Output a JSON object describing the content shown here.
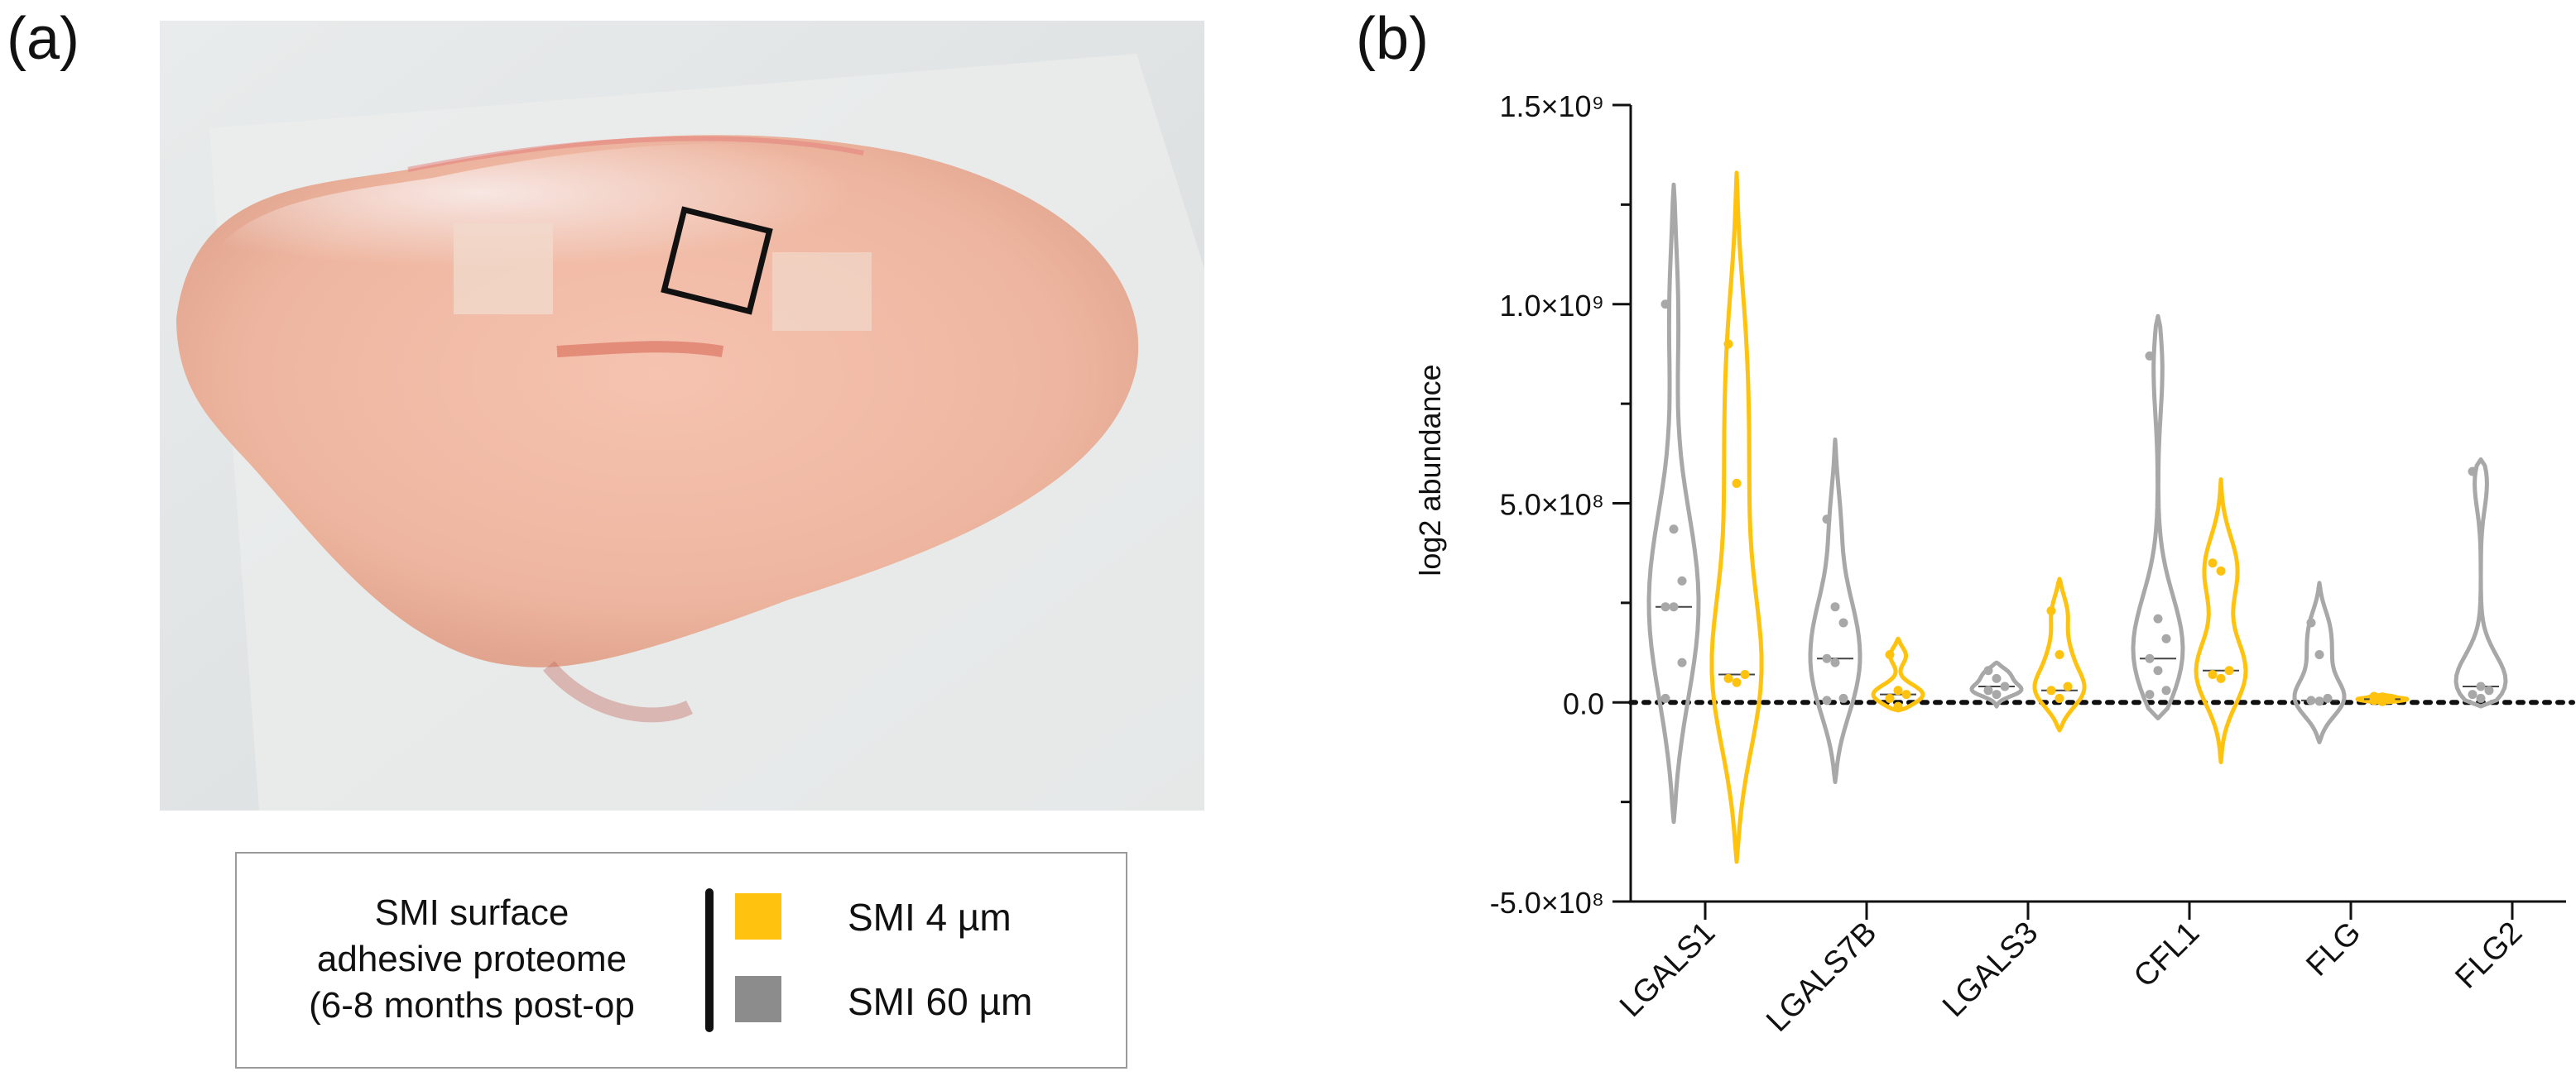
{
  "panels": {
    "a_label": "(a)",
    "b_label": "(b)"
  },
  "photo": {
    "description_icon": "specimen-photo-icon"
  },
  "legend": {
    "title_lines": [
      "SMI surface",
      "adhesive proteome",
      "(6-8 months post-op"
    ],
    "items": [
      {
        "label": "SMI 4 µm",
        "color": "#FFC20E"
      },
      {
        "label": "SMI 60 µm",
        "color": "#8C8C8C"
      }
    ]
  },
  "chart_data": {
    "type": "violin",
    "ylabel": "log2 abundance",
    "ylim": [
      -500000000,
      1500000000
    ],
    "yticks": [
      {
        "value": 1500000000,
        "label": "1.5×10⁹"
      },
      {
        "value": 1000000000,
        "label": "1.0×10⁹"
      },
      {
        "value": 500000000,
        "label": "5.0×10⁸"
      },
      {
        "value": 0,
        "label": "0.0"
      },
      {
        "value": -500000000,
        "label": "-5.0×10⁸"
      }
    ],
    "categories": [
      "LGALS1",
      "LGALS7B",
      "LGALS3",
      "CFL1",
      "FLG",
      "FLG2"
    ],
    "reference_line": 0,
    "series": [
      {
        "name": "SMI 60 µm",
        "color": "#A8A8A8",
        "groups": [
          {
            "category": "LGALS1",
            "min": -300000000,
            "max": 1300000000,
            "median": 240000000,
            "points": [
              1000000000,
              435000000,
              305000000,
              240000000,
              240000000,
              100000000,
              10000000
            ]
          },
          {
            "category": "LGALS7B",
            "min": -200000000,
            "max": 660000000,
            "median": 110000000,
            "points": [
              460000000,
              240000000,
              200000000,
              110000000,
              100000000,
              10000000,
              5000000
            ]
          },
          {
            "category": "LGALS3",
            "min": -10000000,
            "max": 100000000,
            "median": 40000000,
            "points": [
              80000000,
              60000000,
              40000000,
              30000000,
              20000000
            ]
          },
          {
            "category": "CFL1",
            "min": -40000000,
            "max": 970000000,
            "median": 110000000,
            "points": [
              870000000,
              210000000,
              160000000,
              110000000,
              80000000,
              30000000,
              20000000
            ]
          },
          {
            "category": "FLG",
            "min": -100000000,
            "max": 300000000,
            "median": 5000000,
            "points": [
              200000000,
              120000000,
              10000000,
              5000000,
              3000000
            ]
          },
          {
            "category": "FLG2",
            "min": -10000000,
            "max": 610000000,
            "median": 40000000,
            "points": [
              580000000,
              40000000,
              30000000,
              20000000,
              10000000
            ]
          }
        ]
      },
      {
        "name": "SMI 4 µm",
        "color": "#FFC20E",
        "groups": [
          {
            "category": "LGALS1",
            "min": -400000000,
            "max": 1330000000,
            "median": 70000000,
            "points": [
              900000000,
              550000000,
              70000000,
              60000000,
              50000000
            ]
          },
          {
            "category": "LGALS7B",
            "min": -20000000,
            "max": 160000000,
            "median": 20000000,
            "points": [
              120000000,
              30000000,
              20000000,
              10000000,
              -10000000
            ]
          },
          {
            "category": "LGALS3",
            "min": -70000000,
            "max": 310000000,
            "median": 30000000,
            "points": [
              230000000,
              120000000,
              40000000,
              30000000,
              10000000
            ]
          },
          {
            "category": "CFL1",
            "min": -150000000,
            "max": 560000000,
            "median": 80000000,
            "points": [
              350000000,
              330000000,
              80000000,
              70000000,
              60000000
            ]
          },
          {
            "category": "FLG",
            "min": 0,
            "max": 20000000,
            "median": 8000000,
            "points": [
              15000000,
              10000000,
              8000000,
              5000000,
              2000000
            ]
          }
        ]
      }
    ]
  }
}
